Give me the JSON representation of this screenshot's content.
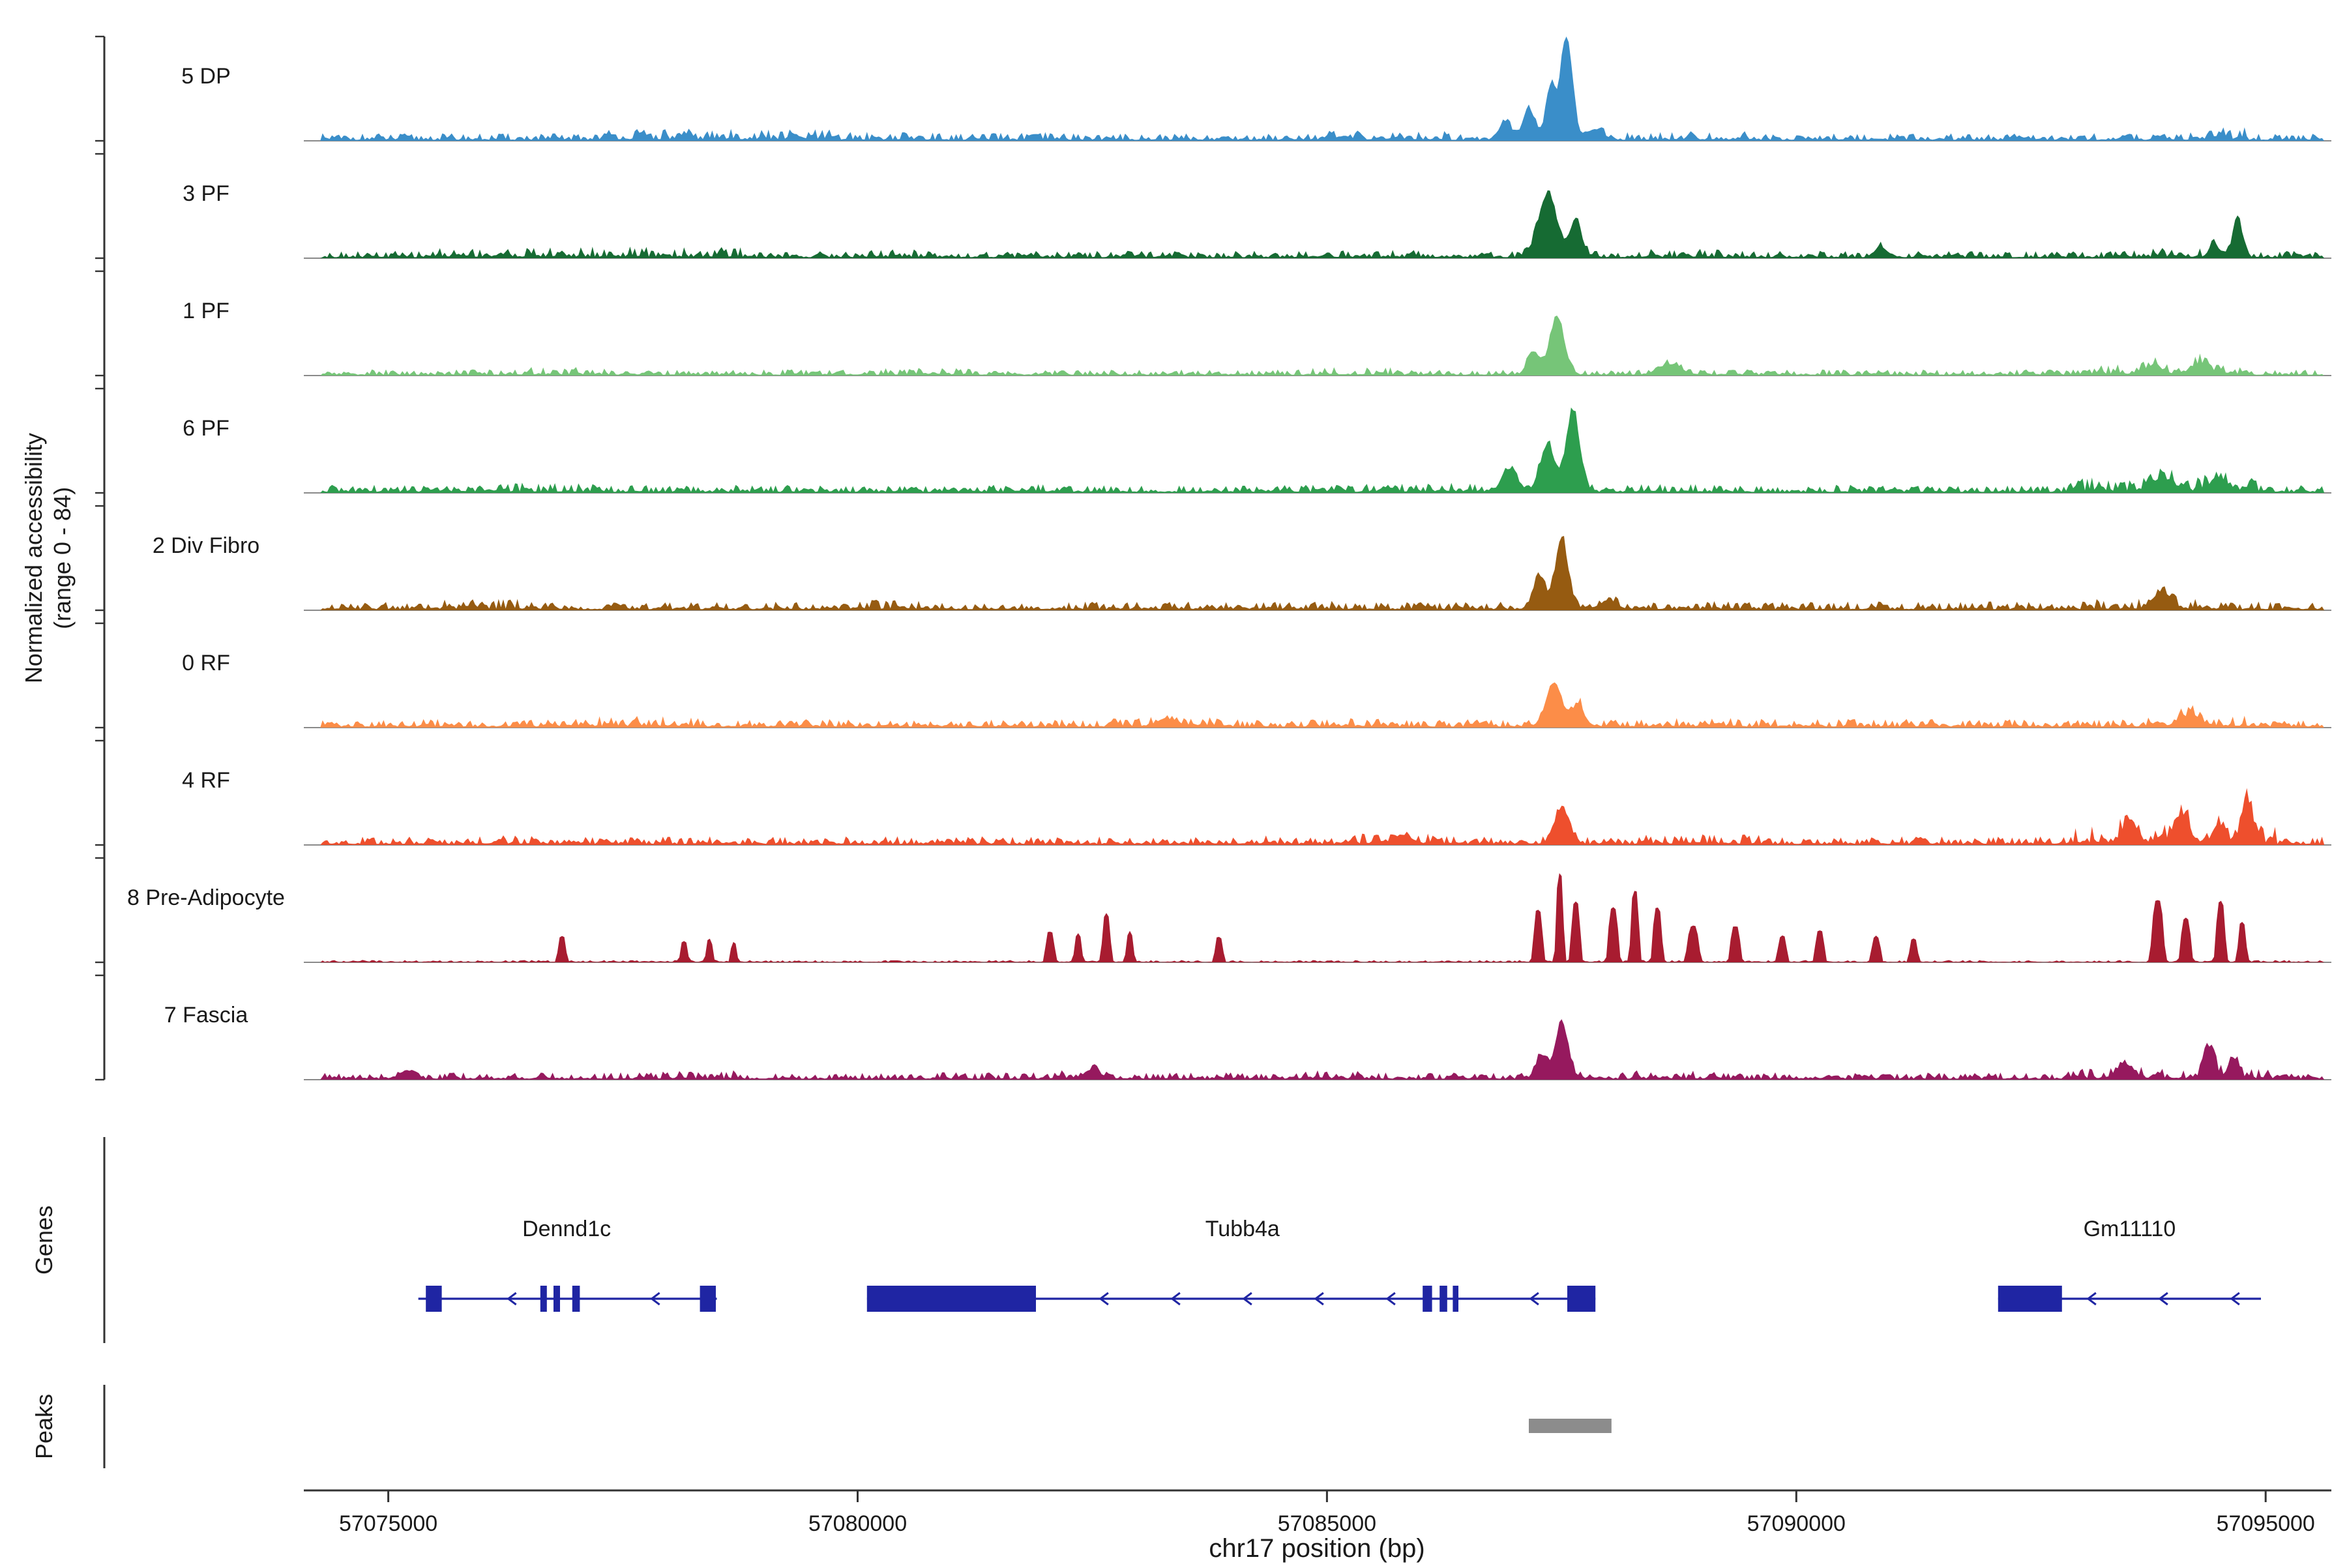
{
  "figure": {
    "y_axis_label_line1": "Normalized accessibility",
    "y_axis_label_line2": "(range 0 - 84)",
    "genes_label": "Genes",
    "peaks_label": "Peaks",
    "x_axis_title": "chr17 position (bp)"
  },
  "chart_data": {
    "type": "area",
    "description": "Genome browser ATAC-seq accessibility coverage tracks, chr17, with gene models and peak calls",
    "x_domain_bp": [
      57074100,
      57095700
    ],
    "y_range_per_track": [
      0,
      84
    ],
    "x_ticks": [
      {
        "pos": 57075000,
        "label": "57075000"
      },
      {
        "pos": 57080000,
        "label": "57080000"
      },
      {
        "pos": 57085000,
        "label": "57085000"
      },
      {
        "pos": 57090000,
        "label": "57090000"
      },
      {
        "pos": 57095000,
        "label": "57095000"
      }
    ],
    "colors": {
      "gene": "#1f25a3",
      "peak_bar": "#8c8c8c",
      "baseline": "#8a8a8a",
      "axis": "#333333",
      "text": "#1a1a1a"
    },
    "tracks": [
      {
        "label": "5 DP",
        "color": "#3a8ec9",
        "seed": 11,
        "peak_exp": 2,
        "peaks": [
          [
            57087550,
            1.0,
            90
          ],
          [
            57087380,
            0.5,
            70
          ],
          [
            57087150,
            0.3,
            90
          ],
          [
            57086900,
            0.18,
            90
          ],
          [
            57087850,
            0.1,
            120
          ]
        ],
        "noise": [
          [
            57074300,
            57095600,
            0.04
          ],
          [
            57077200,
            57079700,
            0.065
          ],
          [
            57079900,
            57080800,
            0.05
          ],
          [
            57081500,
            57082500,
            0.045
          ],
          [
            57084500,
            57086300,
            0.055
          ],
          [
            57088200,
            57089600,
            0.05
          ],
          [
            57090500,
            57091200,
            0.045
          ],
          [
            57094200,
            57094800,
            0.08
          ]
        ]
      },
      {
        "label": "3 PF",
        "color": "#166b33",
        "seed": 22,
        "peak_exp": 2,
        "peaks": [
          [
            57087350,
            0.6,
            140
          ],
          [
            57087650,
            0.35,
            90
          ],
          [
            57094700,
            0.4,
            70
          ],
          [
            57094450,
            0.14,
            70
          ],
          [
            57090900,
            0.1,
            90
          ]
        ],
        "noise": [
          [
            57074300,
            57095600,
            0.038
          ],
          [
            57075400,
            57078900,
            0.06
          ],
          [
            57080000,
            57081000,
            0.05
          ],
          [
            57084800,
            57086300,
            0.05
          ],
          [
            57088200,
            57089400,
            0.05
          ],
          [
            57093400,
            57094300,
            0.055
          ]
        ]
      },
      {
        "label": "1 PF",
        "color": "#76c578",
        "seed": 33,
        "peak_exp": 2,
        "peaks": [
          [
            57087450,
            0.55,
            110
          ],
          [
            57087200,
            0.22,
            90
          ],
          [
            57088650,
            0.1,
            160
          ],
          [
            57094300,
            0.1,
            130
          ],
          [
            57093800,
            0.08,
            120
          ]
        ],
        "noise": [
          [
            57074300,
            57095600,
            0.032
          ],
          [
            57076300,
            57077400,
            0.045
          ],
          [
            57080300,
            57081200,
            0.04
          ],
          [
            57084800,
            57085700,
            0.045
          ],
          [
            57093100,
            57094800,
            0.06
          ]
        ]
      },
      {
        "label": "6 PF",
        "color": "#2d9e4e",
        "seed": 44,
        "peak_exp": 2,
        "peaks": [
          [
            57087620,
            0.78,
            100
          ],
          [
            57087350,
            0.45,
            110
          ],
          [
            57086950,
            0.22,
            110
          ],
          [
            57093900,
            0.12,
            150
          ],
          [
            57094500,
            0.13,
            120
          ]
        ],
        "noise": [
          [
            57074300,
            57095600,
            0.042
          ],
          [
            57076100,
            57077300,
            0.055
          ],
          [
            57081100,
            57082100,
            0.05
          ],
          [
            57085400,
            57086600,
            0.055
          ],
          [
            57088300,
            57089200,
            0.05
          ],
          [
            57092900,
            57094900,
            0.08
          ]
        ]
      },
      {
        "label": "2 Div Fibro",
        "color": "#965b11",
        "seed": 55,
        "peak_exp": 2,
        "peaks": [
          [
            57087500,
            0.68,
            95
          ],
          [
            57087260,
            0.32,
            90
          ],
          [
            57093900,
            0.16,
            130
          ],
          [
            57088000,
            0.08,
            120
          ]
        ],
        "noise": [
          [
            57074300,
            57095600,
            0.045
          ],
          [
            57075200,
            57076600,
            0.06
          ],
          [
            57079700,
            57081000,
            0.055
          ],
          [
            57084200,
            57085400,
            0.05
          ],
          [
            57088300,
            57089300,
            0.05
          ],
          [
            57093100,
            57094600,
            0.06
          ]
        ]
      },
      {
        "label": "0 RF",
        "color": "#fc8d48",
        "seed": 66,
        "peak_exp": 2,
        "peaks": [
          [
            57087420,
            0.42,
            120
          ],
          [
            57087680,
            0.22,
            80
          ],
          [
            57094200,
            0.1,
            150
          ],
          [
            57083300,
            0.07,
            150
          ]
        ],
        "noise": [
          [
            57074300,
            57095600,
            0.045
          ],
          [
            57076700,
            57078300,
            0.06
          ],
          [
            57082700,
            57083900,
            0.055
          ],
          [
            57084800,
            57085700,
            0.05
          ],
          [
            57088300,
            57089300,
            0.05
          ],
          [
            57093700,
            57094900,
            0.065
          ]
        ]
      },
      {
        "label": "4 RF",
        "color": "#ee4f2d",
        "seed": 77,
        "peak_exp": 2,
        "peaks": [
          [
            57087500,
            0.34,
            110
          ],
          [
            57093550,
            0.22,
            100
          ],
          [
            57094100,
            0.26,
            110
          ],
          [
            57094800,
            0.42,
            80
          ],
          [
            57094500,
            0.18,
            80
          ],
          [
            57085800,
            0.08,
            120
          ]
        ],
        "noise": [
          [
            57074300,
            57095600,
            0.045
          ],
          [
            57075900,
            57077100,
            0.055
          ],
          [
            57083400,
            57084600,
            0.055
          ],
          [
            57085100,
            57086300,
            0.06
          ],
          [
            57088400,
            57089600,
            0.055
          ],
          [
            57092900,
            57095100,
            0.1
          ]
        ]
      },
      {
        "label": "8 Pre-Adipocyte",
        "color": "#a81c30",
        "seed": 88,
        "peak_exp": 4,
        "peaks": [
          [
            57076850,
            0.24,
            50
          ],
          [
            57078150,
            0.2,
            45
          ],
          [
            57078420,
            0.22,
            40
          ],
          [
            57078680,
            0.18,
            40
          ],
          [
            57082050,
            0.28,
            55
          ],
          [
            57082350,
            0.26,
            45
          ],
          [
            57082650,
            0.46,
            50
          ],
          [
            57082900,
            0.28,
            45
          ],
          [
            57083850,
            0.24,
            50
          ],
          [
            57087250,
            0.5,
            55
          ],
          [
            57087480,
            0.85,
            45
          ],
          [
            57087650,
            0.58,
            55
          ],
          [
            57088050,
            0.52,
            60
          ],
          [
            57088280,
            0.68,
            50
          ],
          [
            57088520,
            0.52,
            55
          ],
          [
            57088900,
            0.34,
            70
          ],
          [
            57089350,
            0.34,
            60
          ],
          [
            57089850,
            0.24,
            55
          ],
          [
            57090250,
            0.3,
            55
          ],
          [
            57090850,
            0.24,
            55
          ],
          [
            57091250,
            0.22,
            50
          ],
          [
            57093850,
            0.58,
            70
          ],
          [
            57094150,
            0.42,
            60
          ],
          [
            57094520,
            0.58,
            55
          ],
          [
            57094750,
            0.38,
            50
          ]
        ],
        "noise": [
          [
            57074300,
            57095600,
            0.012
          ]
        ]
      },
      {
        "label": "7 Fascia",
        "color": "#96195e",
        "seed": 99,
        "peak_exp": 2,
        "peaks": [
          [
            57087500,
            0.52,
            100
          ],
          [
            57087280,
            0.22,
            80
          ],
          [
            57093500,
            0.14,
            120
          ],
          [
            57094400,
            0.3,
            80
          ],
          [
            57094650,
            0.2,
            70
          ],
          [
            57082500,
            0.08,
            120
          ],
          [
            57075200,
            0.08,
            100
          ]
        ],
        "noise": [
          [
            57074300,
            57095600,
            0.038
          ],
          [
            57077700,
            57078700,
            0.05
          ],
          [
            57082100,
            57083000,
            0.05
          ],
          [
            57084700,
            57085500,
            0.048
          ],
          [
            57088300,
            57089200,
            0.048
          ],
          [
            57092900,
            57095100,
            0.06
          ]
        ]
      }
    ],
    "genes": [
      {
        "name": "Dennd1c",
        "start": 57075320,
        "end": 57078500,
        "strand": "-",
        "exons": [
          [
            57075400,
            57075570
          ],
          [
            57076620,
            57076690
          ],
          [
            57076760,
            57076830
          ],
          [
            57076960,
            57077040
          ],
          [
            57078320,
            57078490
          ]
        ],
        "label_bp": 57076900
      },
      {
        "name": "Tubb4a",
        "start": 57080100,
        "end": 57087860,
        "strand": "-",
        "exons": [
          [
            57080100,
            57081900
          ],
          [
            57086020,
            57086120
          ],
          [
            57086200,
            57086280
          ],
          [
            57086340,
            57086400
          ],
          [
            57087560,
            57087860
          ]
        ],
        "label_bp": 57084100
      },
      {
        "name": "Gm11110",
        "start": 57092150,
        "end": 57094950,
        "strand": "-",
        "exons": [
          [
            57092150,
            57092830
          ]
        ],
        "label_bp": 57093550
      }
    ],
    "peak_regions": [
      {
        "start": 57087150,
        "end": 57088030
      }
    ]
  }
}
